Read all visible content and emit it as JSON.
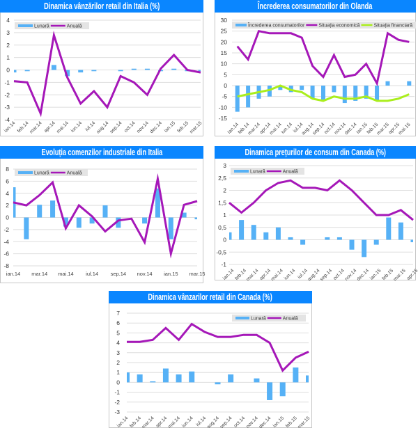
{
  "chart_data": [
    {
      "type": "bar+line",
      "title": "Dinamica vânzărilor retail din Italia (%)",
      "xlabel": "",
      "ylabel": "",
      "categories": [
        "ian.14",
        "feb.14",
        "mar.14",
        "apr.14",
        "mai.14",
        "iun.14",
        "iul.14",
        "aug.14",
        "sep.14",
        "oct.14",
        "nov.14",
        "dec.14",
        "ian.15",
        "feb.15",
        "mar.15"
      ],
      "xtick_labels": [
        "ian.14",
        "feb.14",
        "mar.14",
        "apr.14",
        "mai.14",
        "iun.14",
        "iul.14",
        "aug.14",
        "sep.14",
        "oct.14",
        "nov.14",
        "dec.14",
        "ian.15",
        "feb.15",
        "mar.15"
      ],
      "ylim": [
        -4,
        4
      ],
      "yticks": [
        -4,
        -3,
        -2,
        -1,
        0,
        1,
        2,
        3,
        4
      ],
      "ytick_labels": [
        "-4",
        "-3",
        "-2",
        "-1",
        "0",
        "1",
        "2",
        "3",
        "4"
      ],
      "grid": true,
      "legend": "top-left",
      "series": [
        {
          "name": "Lunară",
          "type": "bar",
          "color": "#56b1f6",
          "values": [
            -0.2,
            -0.1,
            0,
            0.4,
            -0.5,
            -0.2,
            -0.1,
            0,
            -0.1,
            0.1,
            0.1,
            -0.1,
            0.1,
            -0.1,
            -0.1
          ]
        },
        {
          "name": "Anuală",
          "type": "line",
          "color": "#a517b8",
          "values": [
            -0.9,
            -1.0,
            -3.5,
            2.8,
            -0.6,
            -2.7,
            -1.7,
            -3.0,
            -0.5,
            -1.0,
            -2.0,
            0.1,
            1.2,
            0.0,
            -0.2
          ]
        }
      ]
    },
    {
      "type": "bar+line",
      "title": "Încrederea consumatorilor din Olanda",
      "xlabel": "",
      "ylabel": "",
      "categories": [
        "ian.14",
        "feb.14",
        "mar.14",
        "apr.14",
        "mai.14",
        "iun.14",
        "iul.14",
        "aug.14",
        "sep.14",
        "oct.14",
        "nov.14",
        "dec.14",
        "ian.15",
        "feb.15",
        "mar.15",
        "apr.15",
        "mai.15"
      ],
      "xtick_labels": [
        "ian.14",
        "feb.14",
        "mar.14",
        "apr.14",
        "mai.14",
        "iun.14",
        "iul.14",
        "aug.14",
        "sep.14",
        "oct.14",
        "nov.14",
        "dec.14",
        "ian.15",
        "feb.15",
        "mar.15",
        "apr.15",
        "mai.15"
      ],
      "ylim": [
        -15,
        30
      ],
      "yticks": [
        -15,
        -10,
        -5,
        0,
        5,
        10,
        15,
        20,
        25,
        30
      ],
      "ytick_labels": [
        "-15",
        "-10",
        "-5",
        "0",
        "5",
        "10",
        "15",
        "20",
        "25",
        "30"
      ],
      "grid": true,
      "legend": "top",
      "series": [
        {
          "name": "Încrederea consumatorilor",
          "type": "bar",
          "color": "#56b1f6",
          "values": [
            -12,
            -10,
            -6,
            -5,
            -2,
            -3,
            -2,
            -6,
            -7,
            -3,
            -8,
            -7,
            -6,
            -7,
            2,
            0,
            2
          ]
        },
        {
          "name": "Situația economică",
          "type": "line",
          "color": "#a517b8",
          "values": [
            18,
            12,
            25,
            24,
            24,
            24,
            22,
            9,
            4,
            14,
            4,
            5,
            10,
            1,
            24,
            21,
            20
          ]
        },
        {
          "name": "Situația financiară",
          "type": "line",
          "color": "#aaee1c",
          "values": [
            -5,
            -4,
            -3,
            -2,
            0,
            -2,
            -3,
            -6,
            -7,
            -5,
            -6,
            -6,
            -5,
            -7,
            -7,
            -6,
            -4
          ]
        }
      ]
    },
    {
      "type": "bar+line",
      "title": "Evoluția comenzilor industriale din Italia",
      "xlabel": "",
      "ylabel": "",
      "categories": [
        "ian.14",
        "feb.14",
        "mar.14",
        "apr.14",
        "mai.14",
        "iun.14",
        "iul.14",
        "aug.14",
        "sep.14",
        "oct.14",
        "nov.14",
        "dec.14",
        "ian.15",
        "feb.15",
        "mar.15"
      ],
      "xtick_labels": [
        "ian.14",
        "mar.14",
        "mai.14",
        "iul.14",
        "sep.14",
        "nov.14",
        "ian.15",
        "mar.15"
      ],
      "ylim": [
        -8,
        8
      ],
      "yticks": [
        -8,
        -6,
        -4,
        -2,
        0,
        2,
        4,
        6,
        8
      ],
      "ytick_labels": [
        "-8",
        "-6",
        "-4",
        "-2",
        "0",
        "2",
        "4",
        "6",
        "8"
      ],
      "grid": true,
      "legend": "top-left",
      "series": [
        {
          "name": "Lunară",
          "type": "bar",
          "color": "#56b1f6",
          "values": [
            5.0,
            -3.6,
            2.1,
            2.8,
            -1.5,
            -1.7,
            -1.0,
            2.0,
            -1.7,
            0,
            -1.0,
            4.8,
            -3.6,
            0.8,
            -0.3
          ]
        },
        {
          "name": "Anuală",
          "type": "line",
          "color": "#a517b8",
          "values": [
            2.5,
            2.0,
            3.7,
            5.8,
            -1.8,
            2.0,
            0.2,
            -2.3,
            -0.5,
            -0.2,
            -4.1,
            6.4,
            -6.0,
            2.1,
            2.7
          ]
        }
      ]
    },
    {
      "type": "bar+line",
      "title": "Dinamica prețurilor de consum din Canada (%)",
      "xlabel": "",
      "ylabel": "",
      "categories": [
        "ian.14",
        "feb.14",
        "mar.14",
        "apr.14",
        "mai.14",
        "iun.14",
        "iul.14",
        "aug.14",
        "sep.14",
        "oct.14",
        "nov.14",
        "dec.14",
        "ian.15",
        "feb.15",
        "mar.15",
        "apr.15"
      ],
      "xtick_labels": [
        "ian.14",
        "feb.14",
        "mar.14",
        "apr.14",
        "mai.14",
        "iun.14",
        "iul.14",
        "aug.14",
        "sep.14",
        "oct.14",
        "nov.14",
        "dec.14",
        "ian.15",
        "feb.15",
        "mar.15",
        "apr.15"
      ],
      "ylim": [
        -1,
        3
      ],
      "yticks": [
        -1,
        -0.5,
        0,
        0.5,
        1,
        1.5,
        2,
        2.5,
        3
      ],
      "ytick_labels": [
        "-1",
        "-0,5",
        "0",
        "0,5",
        "1",
        "1,5",
        "2",
        "2,5",
        "3"
      ],
      "grid": true,
      "legend": "top-left",
      "series": [
        {
          "name": "Lunară",
          "type": "bar",
          "color": "#56b1f6",
          "values": [
            0.3,
            0.8,
            0.6,
            0.3,
            0.5,
            0.1,
            -0.2,
            0,
            0.1,
            0.1,
            -0.4,
            -0.7,
            -0.2,
            0.9,
            0.7,
            -0.1
          ]
        },
        {
          "name": "Anuală",
          "type": "line",
          "color": "#a517b8",
          "values": [
            1.5,
            1.1,
            1.5,
            2.0,
            2.3,
            2.4,
            2.1,
            2.1,
            2.0,
            2.4,
            2.0,
            1.5,
            1.0,
            1.0,
            1.2,
            0.8
          ]
        }
      ]
    },
    {
      "type": "bar+line",
      "title": "Dinamica vânzarilor retail din Canada (%)",
      "xlabel": "",
      "ylabel": "",
      "categories": [
        "ian.14",
        "feb.14",
        "mar.14",
        "apr.14",
        "mai.14",
        "iun.14",
        "iul.14",
        "aug.14",
        "sep.14",
        "oct.14",
        "nov.14",
        "dec.14",
        "ian.15",
        "feb.15",
        "mar.15"
      ],
      "xtick_labels": [
        "ian.14",
        "feb.14",
        "mar.14",
        "apr.14",
        "mai.14",
        "iun.14",
        "iul.14",
        "aug.14",
        "sep.14",
        "oct.14",
        "nov.14",
        "dec.14",
        "ian.15",
        "feb.15",
        "mar.15"
      ],
      "ylim": [
        -3,
        7
      ],
      "yticks": [
        -3,
        -2,
        -1,
        0,
        1,
        2,
        3,
        4,
        5,
        6,
        7
      ],
      "ytick_labels": [
        "-3",
        "-2",
        "-1",
        "0",
        "1",
        "2",
        "3",
        "4",
        "5",
        "6",
        "7"
      ],
      "grid": true,
      "legend": "top-right",
      "series": [
        {
          "name": "Lunară",
          "type": "bar",
          "color": "#56b1f6",
          "values": [
            1.0,
            0.8,
            0.1,
            1.4,
            0.8,
            1.1,
            0,
            -0.2,
            0.8,
            0,
            0.4,
            -1.8,
            -1.4,
            1.5,
            0.7
          ]
        },
        {
          "name": "Anuală",
          "type": "line",
          "color": "#a517b8",
          "values": [
            4.1,
            4.1,
            4.3,
            5.5,
            4.3,
            5.9,
            5.1,
            4.6,
            4.6,
            4.8,
            4.8,
            4.0,
            1.2,
            2.5,
            3.1
          ]
        }
      ]
    }
  ]
}
